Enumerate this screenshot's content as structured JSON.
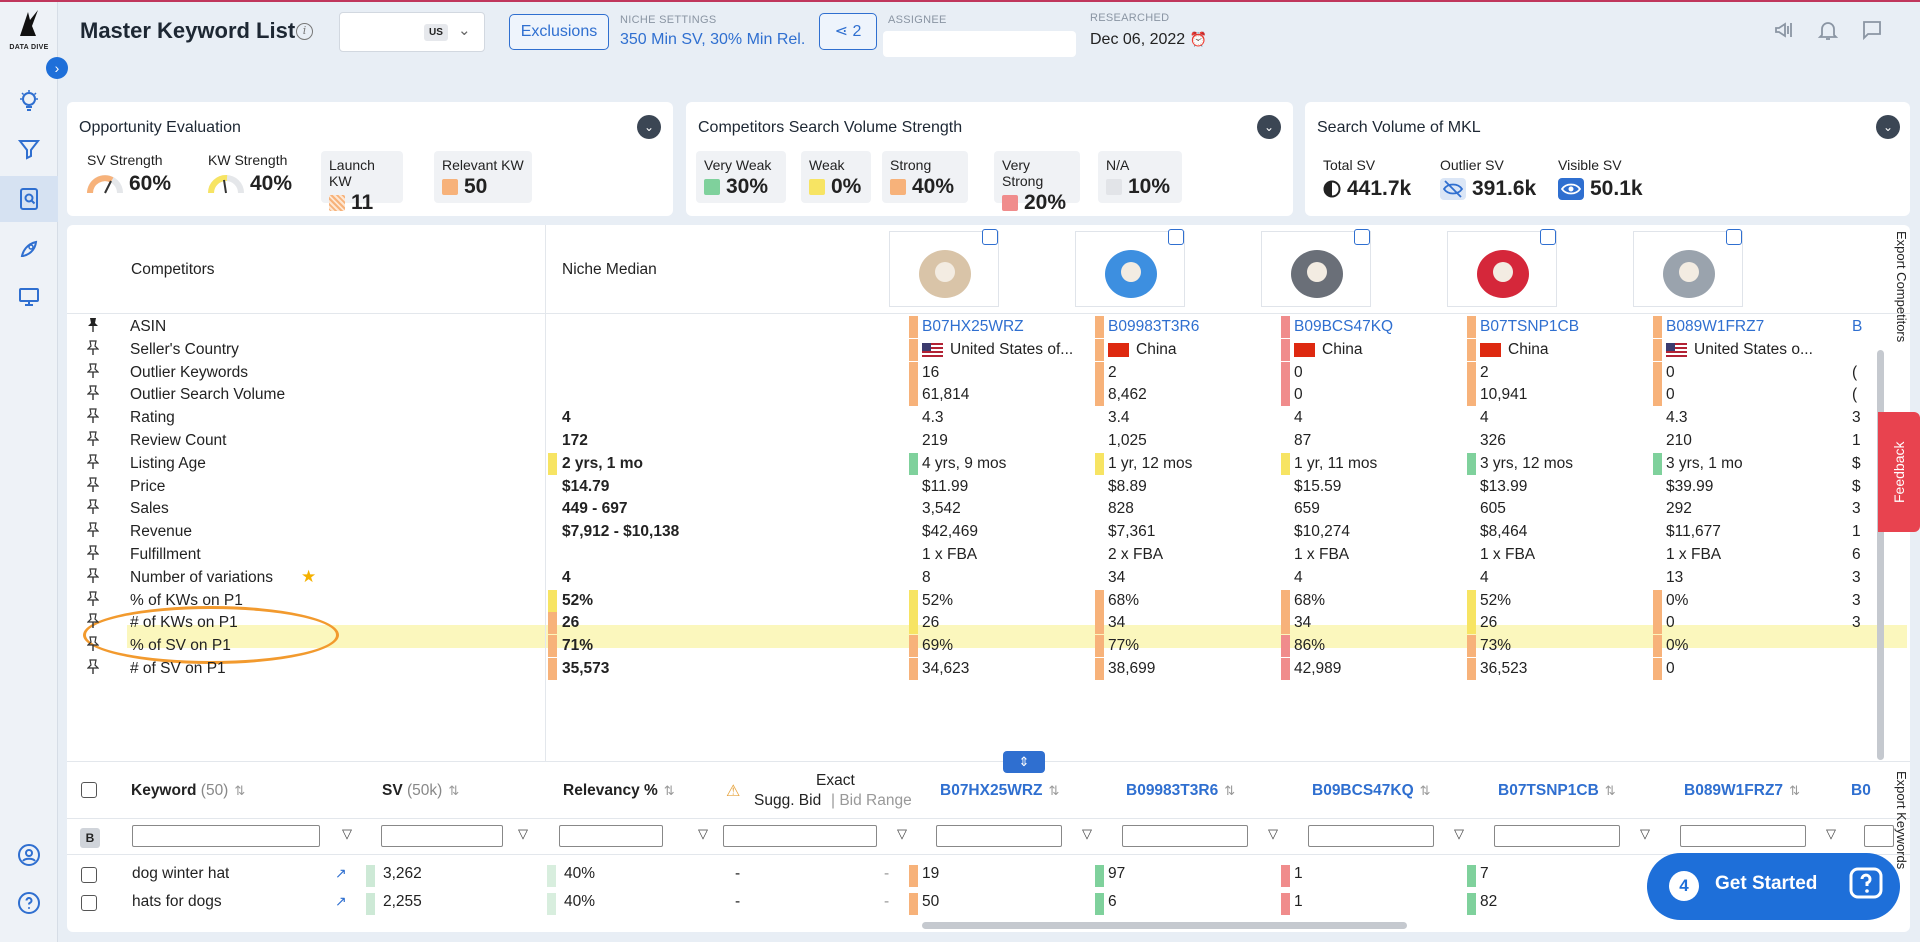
{
  "colors": {
    "accent": "#2f6fd0",
    "very_weak": "#7fd19c",
    "weak": "#f7e463",
    "strong": "#f7b27a",
    "very_strong": "#f08c8c",
    "na": "#e2e4e8",
    "highlight": "#fbf7bd",
    "oval": "#f29a2e"
  },
  "header": {
    "title": "Master Keyword List",
    "market_badge": "US",
    "exclusions_label": "Exclusions",
    "niche_settings_caption": "NICHE SETTINGS",
    "niche_settings_value": "350 Min SV, 30% Min Rel.",
    "share_count": "2",
    "assignee_caption": "ASSIGNEE",
    "researched_caption": "RESEARCHED",
    "researched_date": "Dec 06, 2022"
  },
  "logo_text": "DATA DIVE",
  "cards": {
    "opportunity": {
      "title": "Opportunity Evaluation",
      "sv_strength_label": "SV Strength",
      "sv_strength_value": "60%",
      "kw_strength_label": "KW Strength",
      "kw_strength_value": "40%",
      "launch_kw_label": "Launch KW",
      "launch_kw_value": "11",
      "relevant_kw_label": "Relevant KW",
      "relevant_kw_value": "50"
    },
    "competitors_sv": {
      "title": "Competitors Search Volume Strength",
      "very_weak_label": "Very Weak",
      "very_weak_value": "30%",
      "weak_label": "Weak",
      "weak_value": "0%",
      "strong_label": "Strong",
      "strong_value": "40%",
      "very_strong_label": "Very Strong",
      "very_strong_value": "20%",
      "na_label": "N/A",
      "na_value": "10%"
    },
    "mkl_sv": {
      "title": "Search Volume of MKL",
      "total_label": "Total SV",
      "total_value": "441.7k",
      "outlier_label": "Outlier SV",
      "outlier_value": "391.6k",
      "visible_label": "Visible SV",
      "visible_value": "50.1k"
    }
  },
  "competitors_table": {
    "competitors_header": "Competitors",
    "median_header": "Niche Median",
    "rows": [
      {
        "label": "ASIN",
        "median": ""
      },
      {
        "label": "Seller's Country",
        "median": ""
      },
      {
        "label": "Outlier Keywords",
        "median": ""
      },
      {
        "label": "Outlier Search Volume",
        "median": ""
      },
      {
        "label": "Rating",
        "median": "4"
      },
      {
        "label": "Review Count",
        "median": "172"
      },
      {
        "label": "Listing Age",
        "median": "2 yrs, 1 mo"
      },
      {
        "label": "Price",
        "median": "$14.79"
      },
      {
        "label": "Sales",
        "median": "449 - 697"
      },
      {
        "label": "Revenue",
        "median": "$7,912 - $10,138"
      },
      {
        "label": "Fulfillment",
        "median": ""
      },
      {
        "label": "Number of variations",
        "median": "4"
      },
      {
        "label": "% of KWs on P1",
        "median": "52%"
      },
      {
        "label": "# of KWs on P1",
        "median": "26"
      },
      {
        "label": "% of SV on P1",
        "median": "71%"
      },
      {
        "label": "# of SV on P1",
        "median": "35,573"
      }
    ],
    "competitors": [
      {
        "asin": "B07HX25WRZ",
        "country": "United States of...",
        "outlier_kw": "16",
        "outlier_sv": "61,814",
        "rating": "4.3",
        "reviews": "219",
        "age": "4 yrs, 9 mos",
        "price": "$11.99",
        "sales": "3,542",
        "revenue": "$42,469",
        "fulfillment": "1 x FBA",
        "variations": "8",
        "pct_kw_p1": "52%",
        "num_kw_p1": "26",
        "pct_sv_p1": "69%",
        "num_sv_p1": "34,623"
      },
      {
        "asin": "B09983T3R6",
        "country": "China",
        "outlier_kw": "2",
        "outlier_sv": "8,462",
        "rating": "3.4",
        "reviews": "1,025",
        "age": "1 yr, 12 mos",
        "price": "$8.89",
        "sales": "828",
        "revenue": "$7,361",
        "fulfillment": "2 x FBA",
        "variations": "34",
        "pct_kw_p1": "68%",
        "num_kw_p1": "34",
        "pct_sv_p1": "77%",
        "num_sv_p1": "38,699"
      },
      {
        "asin": "B09BCS47KQ",
        "country": "China",
        "outlier_kw": "0",
        "outlier_sv": "0",
        "rating": "4",
        "reviews": "87",
        "age": "1 yr, 11 mos",
        "price": "$15.59",
        "sales": "659",
        "revenue": "$10,274",
        "fulfillment": "1 x FBA",
        "variations": "4",
        "pct_kw_p1": "68%",
        "num_kw_p1": "34",
        "pct_sv_p1": "86%",
        "num_sv_p1": "42,989"
      },
      {
        "asin": "B07TSNP1CB",
        "country": "China",
        "outlier_kw": "2",
        "outlier_sv": "10,941",
        "rating": "4",
        "reviews": "326",
        "age": "3 yrs, 12 mos",
        "price": "$13.99",
        "sales": "605",
        "revenue": "$8,464",
        "fulfillment": "1 x FBA",
        "variations": "4",
        "pct_kw_p1": "52%",
        "num_kw_p1": "26",
        "pct_sv_p1": "73%",
        "num_sv_p1": "36,523"
      },
      {
        "asin": "B089W1FRZ7",
        "country": "United States o...",
        "outlier_kw": "0",
        "outlier_sv": "0",
        "rating": "4.3",
        "reviews": "210",
        "age": "3 yrs, 1 mo",
        "price": "$39.99",
        "sales": "292",
        "revenue": "$11,677",
        "fulfillment": "1 x FBA",
        "variations": "13",
        "pct_kw_p1": "0%",
        "num_kw_p1": "0",
        "pct_sv_p1": "0%",
        "num_sv_p1": "0"
      }
    ],
    "partial_col_first_chars": [
      "B",
      "(",
      "(",
      "3",
      "1",
      "$",
      "$",
      "3",
      "1",
      "6",
      "3",
      "3",
      "3"
    ]
  },
  "keyword_table": {
    "keyword_header": "Keyword",
    "keyword_count": "(50)",
    "sv_header": "SV",
    "sv_total": "(50k)",
    "relevancy_header": "Relevancy %",
    "exact_header": "Exact",
    "sugg_bid_header": "Sugg. Bid",
    "bid_range_header": "Bid Range",
    "asin_headers": [
      "B07HX25WRZ",
      "B09983T3R6",
      "B09BCS47KQ",
      "B07TSNP1CB",
      "B089W1FRZ7",
      "B0"
    ],
    "b_toggle": "B",
    "rows": [
      {
        "keyword": "dog winter hat",
        "sv": "3,262",
        "relevancy": "40%",
        "sugg_bid": "-",
        "bid_range": "-",
        "ranks": [
          "19",
          "97",
          "1",
          "7"
        ]
      },
      {
        "keyword": "hats for dogs",
        "sv": "2,255",
        "relevancy": "40%",
        "sugg_bid": "-",
        "bid_range": "-",
        "ranks": [
          "50",
          "6",
          "1",
          "82"
        ]
      }
    ]
  },
  "side_tabs": {
    "export_competitors": "Export Competitors",
    "export_keywords": "Export Keywords",
    "feedback": "Feedback"
  },
  "get_started": {
    "count": "4",
    "label": "Get Started"
  }
}
